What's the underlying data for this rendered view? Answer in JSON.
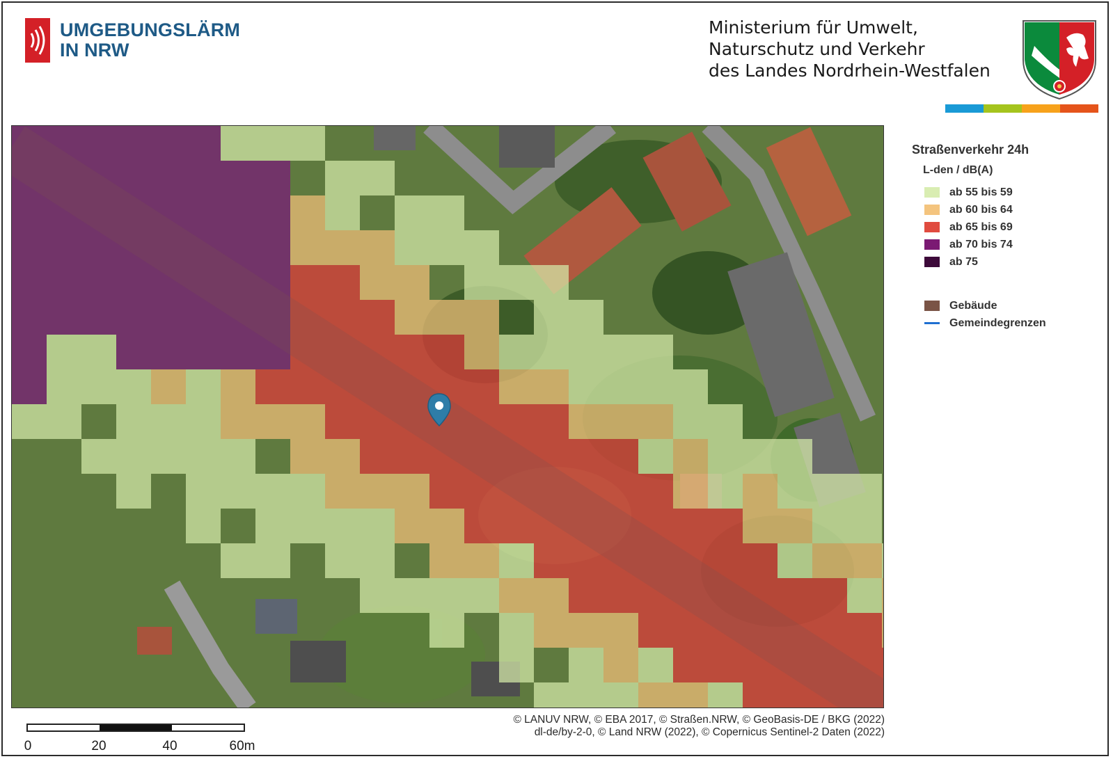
{
  "header": {
    "brand_line1": "UMGEBUNGSLÄRM",
    "brand_line2": "IN NRW",
    "brand_color": "#1e5a86",
    "logo_color": "#d42027",
    "ministry_line1": "Ministerium für Umwelt,",
    "ministry_line2": "Naturschutz und Verkehr",
    "ministry_line3": "des Landes Nordrhein-Westfalen",
    "coat_of_arms": "nrw-coat-of-arms-icon",
    "color_bar": [
      "#1a9ad6",
      "#a5c41e",
      "#f7a21b",
      "#e5541b"
    ]
  },
  "map": {
    "marker": "location-pin-icon",
    "noise_colors": {
      "lvl55": "#d6ebaa",
      "lvl60": "#f2c07a",
      "lvl65": "#e03a3a",
      "lvl70": "#7a1a7a",
      "lvl75": "#3c0a3c"
    }
  },
  "legend": {
    "title": "Straßenverkehr 24h",
    "unit": "L-den / dB(A)",
    "items": [
      {
        "label": "ab 55 bis 59",
        "color": "#d9edb2"
      },
      {
        "label": "ab 60 bis 64",
        "color": "#f4c47e"
      },
      {
        "label": "ab 65 bis 69",
        "color": "#e04b3f"
      },
      {
        "label": "ab 70 bis 74",
        "color": "#7b1a73"
      },
      {
        "label": "ab 75",
        "color": "#3d0a3a"
      }
    ],
    "extra": [
      {
        "label": "Gebäude",
        "color": "#7a5446",
        "kind": "swatch"
      },
      {
        "label": "Gemeindegrenzen",
        "color": "#1f6fd1",
        "kind": "line"
      }
    ]
  },
  "scale": {
    "labels": [
      "0",
      "20",
      "40",
      "60m"
    ]
  },
  "copyright": {
    "line1": "© LANUV NRW, © EBA 2017, © Straßen.NRW, © GeoBasis-DE / BKG (2022)",
    "line2": "dl-de/by-2-0, © Land NRW (2022), © Copernicus Sentinel-2 Daten (2022)"
  }
}
